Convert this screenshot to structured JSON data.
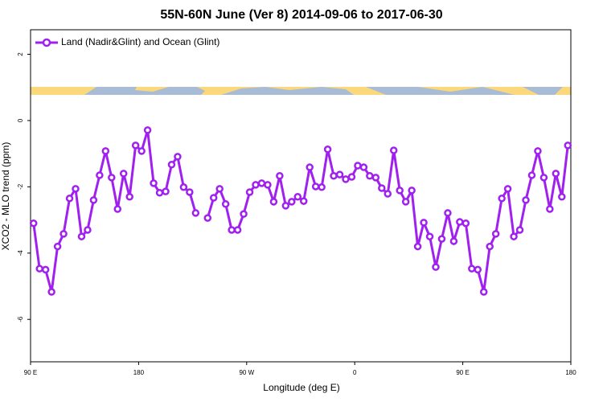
{
  "chart_data": {
    "type": "line",
    "title": "55N-60N June (Ver 8)   2014-09-06 to 2017-06-30",
    "x_label": "Longitude (deg E)",
    "y_label": "XCO2 - MLO trend (ppm)",
    "xlim": [
      90,
      540
    ],
    "ylim": [
      -7.28,
      2.74
    ],
    "xticks": [
      {
        "value": 90,
        "label": "90 E"
      },
      180,
      {
        "value": 270,
        "label": "90 W"
      },
      {
        "value": 360,
        "label": "0"
      },
      {
        "value": 450,
        "label": "90 E"
      },
      {
        "value": 540,
        "label": "180"
      }
    ],
    "yticks": [
      -6,
      -4,
      -2,
      0,
      2
    ],
    "legend": "top-left",
    "x": [
      92.5,
      97.5,
      102.5,
      107.5,
      112.5,
      117.5,
      122.5,
      127.5,
      132.5,
      137.5,
      142.5,
      147.5,
      152.5,
      157.5,
      162.5,
      167.5,
      172.5,
      177.5,
      182.5,
      187.5,
      192.5,
      197.5,
      202.5,
      207.5,
      212.5,
      217.5,
      222.5,
      227.5,
      232.5,
      237.5,
      242.5,
      247.5,
      252.5,
      257.5,
      262.5,
      267.5,
      272.5,
      277.5,
      282.5,
      287.5,
      292.5,
      297.5,
      302.5,
      307.5,
      312.5,
      317.5,
      322.5,
      327.5,
      332.5,
      337.5,
      342.5,
      347.5,
      352.5,
      357.5,
      362.5,
      367.5,
      372.5,
      377.5,
      382.5,
      387.5,
      392.5,
      397.5,
      402.5,
      407.5,
      412.5,
      417.5,
      422.5,
      427.5,
      432.5,
      437.5,
      442.5,
      447.5,
      452.5,
      457.5,
      462.5,
      467.5,
      472.5,
      477.5,
      482.5,
      487.5,
      492.5,
      497.5,
      502.5,
      507.5,
      512.5,
      517.5,
      522.5,
      527.5,
      532.5,
      537.5
    ],
    "series": [
      {
        "name": "Land (Nadir&Glint) and Ocean (Glint)",
        "color": "#a020f0",
        "values": [
          -3.1,
          -4.47,
          -4.5,
          -5.17,
          -3.8,
          -3.42,
          -2.35,
          -2.06,
          -3.5,
          -3.3,
          -2.4,
          -1.65,
          -0.92,
          -1.72,
          -2.67,
          -1.6,
          -2.3,
          -0.75,
          -0.92,
          -0.29,
          -1.89,
          -2.18,
          -2.14,
          -1.33,
          -1.09,
          -2.01,
          -2.16,
          -2.79,
          null,
          -2.94,
          -2.33,
          -2.06,
          -2.52,
          -3.3,
          -3.3,
          -2.82,
          -2.16,
          -1.94,
          -1.89,
          -1.94,
          -2.45,
          -1.67,
          -2.57,
          -2.45,
          -2.3,
          -2.43,
          -1.41,
          -1.99,
          -2.01,
          -0.87,
          -1.67,
          -1.63,
          -1.77,
          -1.7,
          -1.36,
          -1.41,
          -1.67,
          -1.72,
          -2.04,
          -2.21,
          -0.9,
          -2.11,
          -2.45,
          -2.11,
          -3.8,
          -3.08,
          -3.5,
          -4.42,
          -3.57,
          -2.79,
          -3.64,
          -3.06,
          -3.1,
          -4.47,
          -4.5,
          -5.17,
          -3.8,
          -3.42,
          -2.35,
          -2.06,
          -3.5,
          -3.3,
          -2.4,
          -1.65,
          -0.92,
          -1.72,
          -2.67,
          -1.6,
          -2.3,
          -0.75
        ]
      }
    ]
  }
}
